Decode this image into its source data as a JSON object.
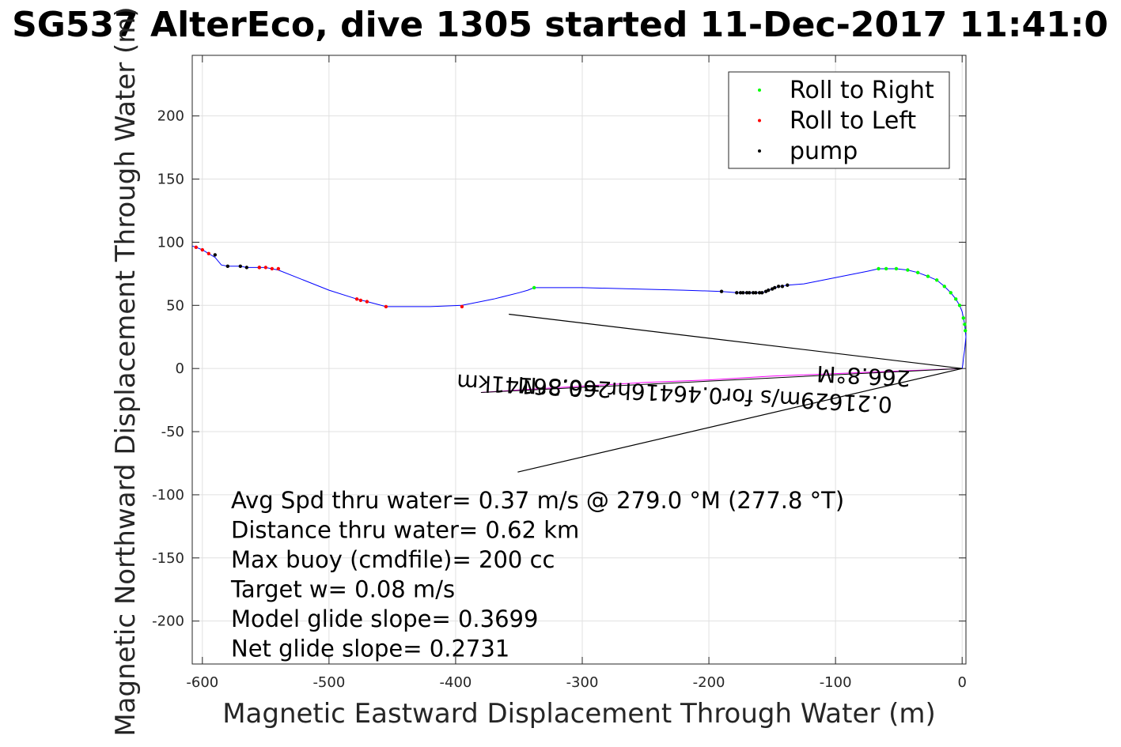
{
  "chart_data": {
    "type": "line",
    "title": "SG537 AlterEco, dive 1305 started 11-Dec-2017 11:41:0",
    "xlabel": "Magnetic Eastward Displacement Through Water (m)",
    "ylabel": "Magnetic Northward Displacement Through Water (m)",
    "xlim": [
      -608,
      3
    ],
    "ylim": [
      -234,
      248
    ],
    "xticks": [
      -600,
      -500,
      -400,
      -300,
      -200,
      -100,
      0
    ],
    "yticks": [
      -200,
      -150,
      -100,
      -50,
      0,
      50,
      100,
      150,
      200
    ],
    "grid": true,
    "legend": {
      "placement": "top-right",
      "entries": [
        {
          "label": "Roll to Right",
          "color": "#00ff00"
        },
        {
          "label": "Roll to Left",
          "color": "#ff0000"
        },
        {
          "label": "pump",
          "color": "#000000"
        }
      ]
    },
    "series": [
      {
        "color": "#0000ff",
        "x": [
          0,
          0.5,
          1,
          2,
          2.5,
          3,
          2.5,
          2,
          1,
          0,
          -2,
          -5,
          -9,
          -14,
          -20,
          -27,
          -35,
          -43,
          -52,
          -60,
          -66,
          -75,
          -90,
          -110,
          -125,
          -138,
          -145,
          -150,
          -155,
          -158,
          -160,
          -163,
          -170,
          -178,
          -190,
          -220,
          -260,
          -300,
          -330,
          -338,
          -343,
          -350,
          -370,
          -395,
          -420,
          -455,
          -470,
          -478,
          -500,
          -520,
          -540,
          -545,
          -550,
          -555,
          -560,
          -565,
          -570,
          -575,
          -580,
          -585,
          -590,
          -595,
          -600,
          -605,
          -608
        ],
        "y": [
          0,
          3,
          8,
          15,
          20,
          25,
          30,
          35,
          40,
          45,
          50,
          55,
          60,
          65,
          70,
          73,
          76,
          78,
          79,
          79,
          79,
          77,
          74,
          70,
          67,
          66,
          65,
          63,
          61,
          60,
          60,
          60,
          60,
          60,
          61,
          62,
          63,
          64,
          64,
          64,
          62,
          60,
          55,
          50,
          49,
          49,
          53,
          55,
          62,
          70,
          78,
          79,
          80,
          80,
          80,
          80,
          81,
          81,
          81,
          82,
          88,
          91,
          94,
          96,
          97
        ]
      },
      {
        "color": "#ff00ff",
        "x": [
          0,
          -50,
          -100,
          -150,
          -200,
          -250,
          -300,
          -350,
          -380
        ],
        "y": [
          0,
          -2,
          -4,
          -6,
          -9,
          -11,
          -14,
          -17,
          -19
        ]
      }
    ],
    "markers": {
      "roll_to_right": {
        "color": "#00ff00",
        "x": [
          2.5,
          2,
          1,
          -2,
          -5,
          -9,
          -14,
          -20,
          -27,
          -35,
          -43,
          -52,
          -60,
          -66,
          -338
        ],
        "y": [
          30,
          35,
          40,
          50,
          55,
          60,
          65,
          70,
          73,
          76,
          78,
          79,
          79,
          79,
          64
        ]
      },
      "roll_to_left": {
        "color": "#ff0000",
        "x": [
          -395,
          -455,
          -470,
          -475,
          -478,
          -540,
          -545,
          -550,
          -555,
          -595,
          -600,
          -605
        ],
        "y": [
          49,
          49,
          53,
          54,
          55,
          79,
          79,
          80,
          80,
          91,
          94,
          96
        ]
      },
      "pump": {
        "color": "#000000",
        "x": [
          -138,
          -142,
          -145,
          -148,
          -150,
          -153,
          -155,
          -158,
          -160,
          -163,
          -165,
          -168,
          -170,
          -173,
          -175,
          -178,
          -190,
          -555,
          -565,
          -570,
          -580,
          -590
        ],
        "y": [
          66,
          65,
          65,
          64,
          63,
          62,
          61,
          60,
          60,
          60,
          60,
          60,
          60,
          60,
          60,
          60,
          61,
          80,
          80,
          81,
          81,
          90
        ]
      }
    },
    "current_arrow": {
      "shaft": {
        "x": [
          0,
          -380
        ],
        "y": [
          0,
          -19
        ]
      },
      "head": {
        "x": [
          -358,
          0,
          -351
        ],
        "y": [
          43,
          0,
          -82
        ]
      },
      "labels": [
        "266.8°M",
        "0.21629m/s for0.46416hr =0.36141km",
        "266.8°M"
      ]
    },
    "annotations": [
      "Avg Spd thru water=  0.37 m/s @ 279.0 °M (277.8 °T)",
      "Distance thru water=  0.62 km",
      "Max buoy (cmdfile)= 200 cc",
      "Target w= 0.08 m/s",
      "Model glide slope= 0.3699",
      "Net glide slope= 0.2731"
    ]
  }
}
